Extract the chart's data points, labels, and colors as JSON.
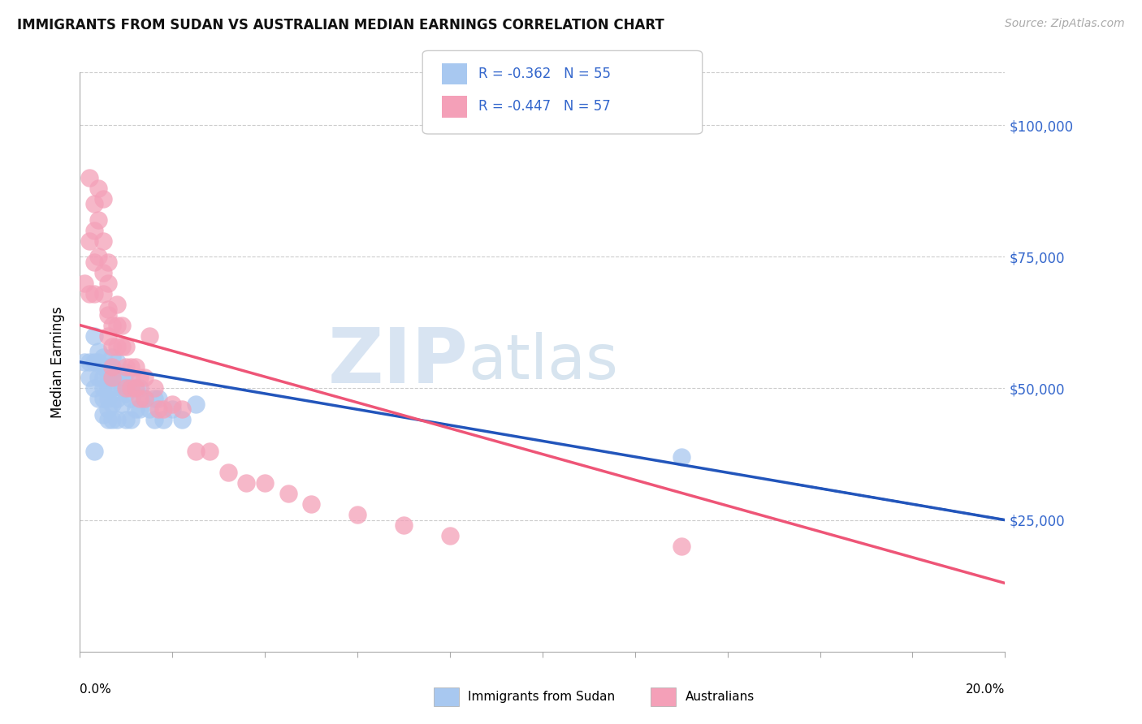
{
  "title": "IMMIGRANTS FROM SUDAN VS AUSTRALIAN MEDIAN EARNINGS CORRELATION CHART",
  "source": "Source: ZipAtlas.com",
  "ylabel": "Median Earnings",
  "legend_label1": "Immigrants from Sudan",
  "legend_label2": "Australians",
  "r1": "-0.362",
  "n1": "55",
  "r2": "-0.447",
  "n2": "57",
  "yticks": [
    0,
    25000,
    50000,
    75000,
    100000
  ],
  "ytick_labels": [
    "",
    "$25,000",
    "$50,000",
    "$75,000",
    "$100,000"
  ],
  "xlim": [
    0.0,
    0.2
  ],
  "ylim": [
    0,
    110000
  ],
  "watermark_zip": "ZIP",
  "watermark_atlas": "atlas",
  "color_blue": "#a8c8f0",
  "color_pink": "#f4a0b8",
  "line_blue": "#2255bb",
  "line_pink": "#ee5577",
  "blue_x": [
    0.001,
    0.002,
    0.002,
    0.003,
    0.003,
    0.003,
    0.004,
    0.004,
    0.004,
    0.004,
    0.005,
    0.005,
    0.005,
    0.005,
    0.005,
    0.005,
    0.006,
    0.006,
    0.006,
    0.006,
    0.006,
    0.006,
    0.007,
    0.007,
    0.007,
    0.007,
    0.007,
    0.008,
    0.008,
    0.008,
    0.008,
    0.009,
    0.009,
    0.009,
    0.01,
    0.01,
    0.01,
    0.011,
    0.011,
    0.011,
    0.012,
    0.012,
    0.013,
    0.013,
    0.014,
    0.015,
    0.016,
    0.016,
    0.017,
    0.018,
    0.02,
    0.022,
    0.025,
    0.13,
    0.003
  ],
  "blue_y": [
    55000,
    55000,
    52000,
    60000,
    55000,
    50000,
    57000,
    55000,
    52000,
    48000,
    56000,
    54000,
    52000,
    50000,
    48000,
    45000,
    54000,
    52000,
    50000,
    48000,
    46000,
    44000,
    56000,
    53000,
    50000,
    47000,
    44000,
    55000,
    52000,
    48000,
    44000,
    52000,
    50000,
    47000,
    53000,
    49000,
    44000,
    52000,
    48000,
    44000,
    50000,
    46000,
    50000,
    46000,
    48000,
    46000,
    48000,
    44000,
    48000,
    44000,
    46000,
    44000,
    47000,
    37000,
    38000
  ],
  "pink_x": [
    0.001,
    0.002,
    0.002,
    0.003,
    0.003,
    0.003,
    0.004,
    0.004,
    0.004,
    0.005,
    0.005,
    0.005,
    0.005,
    0.006,
    0.006,
    0.006,
    0.006,
    0.007,
    0.007,
    0.007,
    0.007,
    0.008,
    0.008,
    0.008,
    0.009,
    0.009,
    0.01,
    0.01,
    0.01,
    0.011,
    0.011,
    0.012,
    0.012,
    0.013,
    0.013,
    0.014,
    0.014,
    0.015,
    0.016,
    0.017,
    0.018,
    0.02,
    0.022,
    0.025,
    0.028,
    0.032,
    0.036,
    0.04,
    0.045,
    0.05,
    0.06,
    0.07,
    0.08,
    0.13,
    0.002,
    0.003,
    0.006
  ],
  "pink_y": [
    70000,
    78000,
    68000,
    85000,
    80000,
    74000,
    88000,
    82000,
    75000,
    78000,
    86000,
    72000,
    68000,
    74000,
    70000,
    65000,
    60000,
    62000,
    58000,
    54000,
    52000,
    66000,
    62000,
    58000,
    62000,
    58000,
    58000,
    54000,
    50000,
    54000,
    50000,
    54000,
    50000,
    52000,
    48000,
    52000,
    48000,
    60000,
    50000,
    46000,
    46000,
    47000,
    46000,
    38000,
    38000,
    34000,
    32000,
    32000,
    30000,
    28000,
    26000,
    24000,
    22000,
    20000,
    90000,
    68000,
    64000
  ]
}
